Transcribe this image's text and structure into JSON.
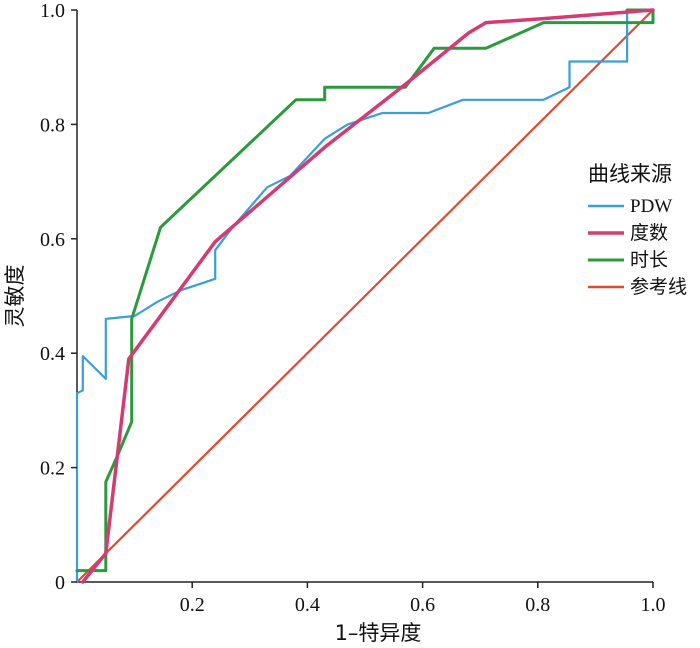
{
  "chart_data": {
    "type": "line",
    "title": "",
    "xlabel": "1–特异度",
    "ylabel": "灵敏度",
    "xlim": [
      0,
      1
    ],
    "ylim": [
      0,
      1
    ],
    "x_ticks": [
      "0.2",
      "0.4",
      "0.6",
      "0.8",
      "1.0"
    ],
    "y_ticks": [
      "0",
      "0.2",
      "0.4",
      "0.6",
      "0.8",
      "1.0"
    ],
    "grid": false,
    "legend": {
      "title": "曲线来源",
      "placement": "right"
    },
    "series": [
      {
        "name": "PDW",
        "color": "#3a9fd8",
        "points": [
          [
            0,
            0
          ],
          [
            0,
            0.33
          ],
          [
            0.01,
            0.335
          ],
          [
            0.01,
            0.395
          ],
          [
            0.05,
            0.355
          ],
          [
            0.05,
            0.46
          ],
          [
            0.1,
            0.465
          ],
          [
            0.14,
            0.49
          ],
          [
            0.18,
            0.51
          ],
          [
            0.24,
            0.53
          ],
          [
            0.24,
            0.58
          ],
          [
            0.27,
            0.62
          ],
          [
            0.33,
            0.69
          ],
          [
            0.37,
            0.71
          ],
          [
            0.43,
            0.775
          ],
          [
            0.47,
            0.8
          ],
          [
            0.53,
            0.82
          ],
          [
            0.61,
            0.82
          ],
          [
            0.67,
            0.843
          ],
          [
            0.81,
            0.843
          ],
          [
            0.855,
            0.865
          ],
          [
            0.855,
            0.91
          ],
          [
            0.955,
            0.91
          ],
          [
            0.955,
            1.0
          ],
          [
            1.0,
            1.0
          ]
        ]
      },
      {
        "name": "度数",
        "color": "#d63a72",
        "points": [
          [
            0.01,
            0
          ],
          [
            0.05,
            0.05
          ],
          [
            0.09,
            0.39
          ],
          [
            0.24,
            0.595
          ],
          [
            0.43,
            0.76
          ],
          [
            0.57,
            0.87
          ],
          [
            0.68,
            0.96
          ],
          [
            0.71,
            0.978
          ],
          [
            0.81,
            0.985
          ],
          [
            1.0,
            1.0
          ]
        ]
      },
      {
        "name": "时长",
        "color": "#2a9a3c",
        "points": [
          [
            0,
            0.02
          ],
          [
            0.05,
            0.02
          ],
          [
            0.05,
            0.175
          ],
          [
            0.07,
            0.22
          ],
          [
            0.095,
            0.28
          ],
          [
            0.095,
            0.46
          ],
          [
            0.145,
            0.62
          ],
          [
            0.38,
            0.843
          ],
          [
            0.43,
            0.843
          ],
          [
            0.43,
            0.865
          ],
          [
            0.57,
            0.865
          ],
          [
            0.62,
            0.933
          ],
          [
            0.71,
            0.933
          ],
          [
            0.81,
            0.978
          ],
          [
            1.0,
            0.978
          ],
          [
            1.0,
            1.0
          ],
          [
            0.955,
            1.0
          ]
        ]
      },
      {
        "name": "参考线",
        "color": "#e04a30",
        "points": [
          [
            0,
            0
          ],
          [
            1,
            1
          ]
        ]
      }
    ]
  }
}
